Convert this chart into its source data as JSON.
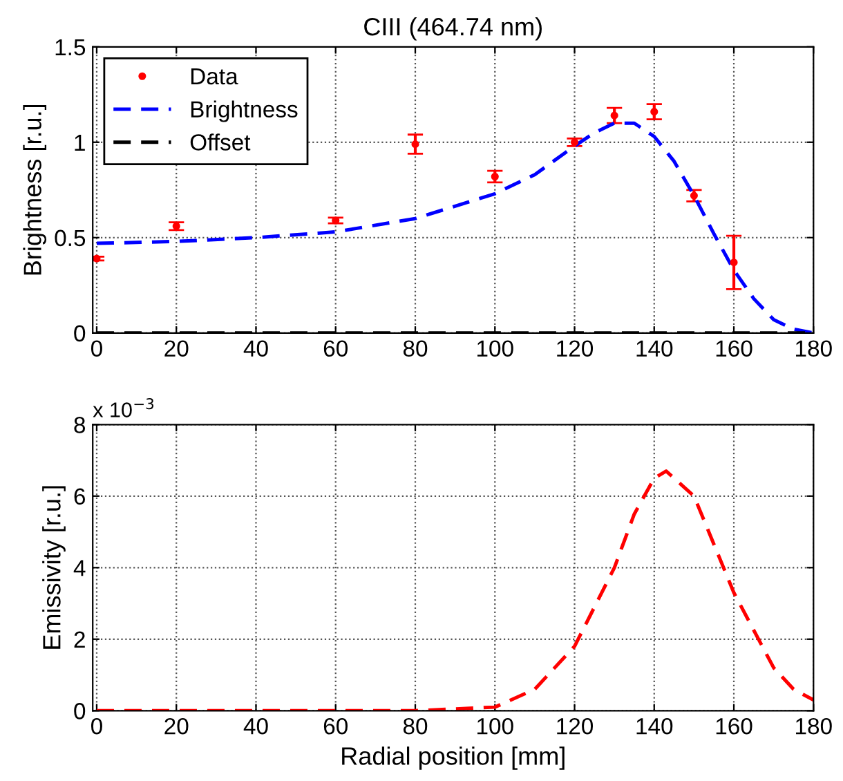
{
  "chart_data": [
    {
      "type": "line",
      "title": "CIII (464.74 nm)",
      "ylabel": "Brightness [r.u.]",
      "xlim": [
        -1,
        180
      ],
      "xticks": [
        0,
        20,
        40,
        60,
        80,
        100,
        120,
        140,
        160,
        180
      ],
      "ylim": [
        0,
        1.5
      ],
      "yticks": [
        0,
        0.5,
        1,
        1.5
      ],
      "grid": true,
      "legend": "top left",
      "series": [
        {
          "name": "Data",
          "type": "scatter",
          "color": "#ff0000",
          "marker": "circle",
          "x": [
            0,
            20,
            60,
            80,
            100,
            120,
            130,
            140,
            150,
            160
          ],
          "values": [
            0.39,
            0.56,
            0.59,
            0.99,
            0.82,
            1.0,
            1.14,
            1.16,
            0.72,
            0.37
          ],
          "errors": [
            0.01,
            0.02,
            0.015,
            0.05,
            0.03,
            0.02,
            0.04,
            0.04,
            0.03,
            0.14
          ]
        },
        {
          "name": "Brightness",
          "type": "line",
          "color": "#0000ff",
          "line_style": "dashed",
          "x": [
            0,
            20,
            40,
            60,
            80,
            100,
            110,
            120,
            125,
            130,
            135,
            140,
            145,
            150,
            155,
            160,
            165,
            170,
            175,
            180
          ],
          "values": [
            0.47,
            0.48,
            0.5,
            0.53,
            0.6,
            0.73,
            0.83,
            0.98,
            1.05,
            1.1,
            1.1,
            1.03,
            0.9,
            0.72,
            0.52,
            0.33,
            0.18,
            0.07,
            0.02,
            0
          ]
        },
        {
          "name": "Offset",
          "type": "line",
          "color": "#000000",
          "line_style": "dashed",
          "x": [
            0,
            180
          ],
          "values": [
            0,
            0
          ]
        }
      ]
    },
    {
      "type": "line",
      "xlabel": "Radial position [mm]",
      "ylabel": "Emissivity [r.u.]",
      "annotations": [
        "x 10$^{−3}$"
      ],
      "xlim": [
        -1,
        180
      ],
      "xticks": [
        0,
        20,
        40,
        60,
        80,
        100,
        120,
        140,
        160,
        180
      ],
      "ylim": [
        0,
        8
      ],
      "yticks": [
        0,
        2,
        4,
        6,
        8
      ],
      "grid": true,
      "series": [
        {
          "type": "line",
          "color": "#ff0000",
          "line_style": "dashed",
          "x": [
            0,
            20,
            40,
            60,
            80,
            100,
            110,
            120,
            130,
            135,
            140,
            143,
            150,
            160,
            170,
            175,
            180
          ],
          "values": [
            0,
            0,
            0,
            0,
            0,
            0.1,
            0.6,
            1.8,
            4.0,
            5.5,
            6.5,
            6.7,
            6.0,
            3.3,
            1.2,
            0.6,
            0.3
          ]
        }
      ]
    }
  ]
}
